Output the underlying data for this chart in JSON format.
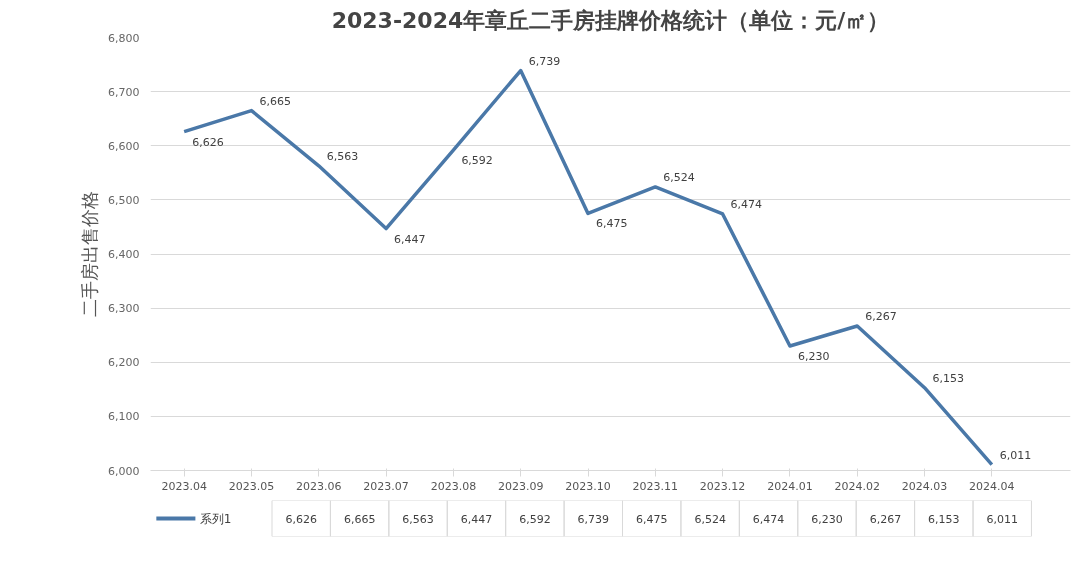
{
  "chart_data": {
    "type": "line",
    "title": "2023-2024年章丘二手房挂牌价格统计（单位：元/㎡）",
    "ylabel": "二手房出售价格",
    "categories": [
      "2023.04",
      "2023.05",
      "2023.06",
      "2023.07",
      "2023.08",
      "2023.09",
      "2023.10",
      "2023.11",
      "2023.12",
      "2024.01",
      "2024.02",
      "2024.03",
      "2024.04"
    ],
    "series": [
      {
        "name": "系列1",
        "color": "#4a78a8",
        "values": [
          6626,
          6665,
          6563,
          6447,
          6592,
          6739,
          6475,
          6524,
          6474,
          6230,
          6267,
          6153,
          6011
        ],
        "value_labels": [
          "6,626",
          "6,665",
          "6,563",
          "6,447",
          "6,592",
          "6,739",
          "6,475",
          "6,524",
          "6,474",
          "6,230",
          "6,267",
          "6,153",
          "6,011"
        ]
      }
    ],
    "ylim": [
      6000,
      6800
    ],
    "yticks": [
      {
        "value": 6000,
        "label": "6,000"
      },
      {
        "value": 6100,
        "label": "6,100"
      },
      {
        "value": 6200,
        "label": "6,200"
      },
      {
        "value": 6300,
        "label": "6,300"
      },
      {
        "value": 6400,
        "label": "6,400"
      },
      {
        "value": 6500,
        "label": "6,500"
      },
      {
        "value": 6600,
        "label": "6,600"
      },
      {
        "value": 6700,
        "label": "6,700"
      },
      {
        "value": 6800,
        "label": "6,800"
      }
    ],
    "grid": "y",
    "marker": "none",
    "line_style": "solid"
  }
}
